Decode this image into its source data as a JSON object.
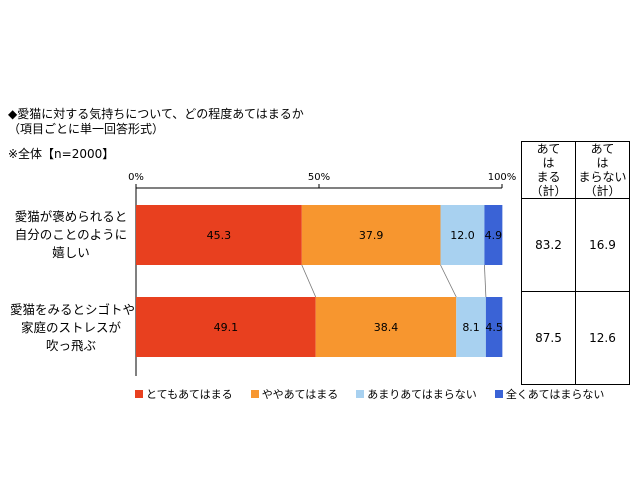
{
  "heading": {
    "title": "◆愛猫に対する気持ちについて、どの程度あてはまるか",
    "subtitle": "（項目ごとに単一回答形式）",
    "sample": "※全体【n=2000】"
  },
  "colors": {
    "very": "#e8401f",
    "somewhat": "#f7962f",
    "not_much": "#a8d1f0",
    "not_at_all": "#3a63d6"
  },
  "chart_data": {
    "type": "bar",
    "orientation": "horizontal",
    "stacked": "percent",
    "x_ticks": [
      "0%",
      "50%",
      "100%"
    ],
    "xlim": [
      0,
      100
    ],
    "categories": [
      [
        "愛猫が褒められると",
        "自分のことのように",
        "嬉しい"
      ],
      [
        "愛猫をみるとシゴトや",
        "家庭のストレスが",
        "吹っ飛ぶ"
      ]
    ],
    "series": [
      {
        "name": "とてもあてはまる",
        "values": [
          45.3,
          49.1
        ]
      },
      {
        "name": "ややあてはまる",
        "values": [
          37.9,
          38.4
        ]
      },
      {
        "name": "あまりあてはまらない",
        "values": [
          12.0,
          8.1
        ]
      },
      {
        "name": "全くあてはまらない",
        "values": [
          4.9,
          4.5
        ]
      }
    ],
    "data_labels": [
      [
        "45.3",
        "37.9",
        "12.0",
        "4.9"
      ],
      [
        "49.1",
        "38.4",
        "8.1",
        "4.5"
      ]
    ],
    "legend_position": "bottom"
  },
  "summary": {
    "headers": [
      [
        "あて",
        "は",
        "まる",
        "（計）"
      ],
      [
        "あて",
        "は",
        "まらない",
        "（計）"
      ]
    ],
    "rows": [
      [
        "83.2",
        "16.9"
      ],
      [
        "87.5",
        "12.6"
      ]
    ]
  }
}
